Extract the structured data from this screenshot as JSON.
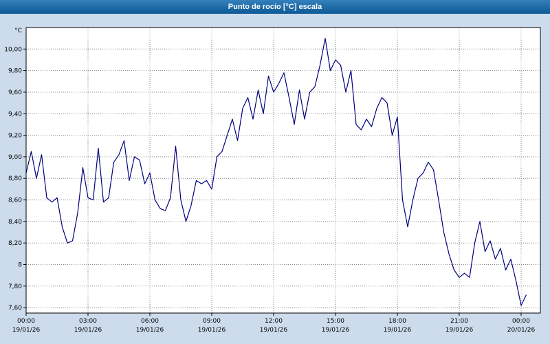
{
  "title": "Punto de rocío [°C] escala",
  "colors": {
    "window_bg": "#ccdcec",
    "titlebar_top": "#3380bb",
    "titlebar_bottom": "#0d5996",
    "title_text": "#ffffff",
    "plot_bg": "#ffffff",
    "grid": "#8a8a8a",
    "axis_text": "#000000",
    "frame": "#000000",
    "line": "#000080"
  },
  "chart_data": {
    "type": "line",
    "title": "Punto de rocío [°C] escala",
    "ylabel": "°C",
    "xlabel": "",
    "ylim": [
      7.55,
      10.2
    ],
    "grid": true,
    "legend_position": "none",
    "y_ticks": [
      {
        "value": 10.0,
        "label": "10,00"
      },
      {
        "value": 9.8,
        "label": "9,80"
      },
      {
        "value": 9.6,
        "label": "9,60"
      },
      {
        "value": 9.4,
        "label": "9,40"
      },
      {
        "value": 9.2,
        "label": "9,20"
      },
      {
        "value": 9.0,
        "label": "9,00"
      },
      {
        "value": 8.8,
        "label": "8,80"
      },
      {
        "value": 8.6,
        "label": "8,60"
      },
      {
        "value": 8.4,
        "label": "8,40"
      },
      {
        "value": 8.2,
        "label": "8,20"
      },
      {
        "value": 8.0,
        "label": "8"
      },
      {
        "value": 7.8,
        "label": "7,80"
      },
      {
        "value": 7.6,
        "label": "7,60"
      }
    ],
    "x_ticks": [
      {
        "hour": 0,
        "time": "00:00",
        "date": "19/01/26"
      },
      {
        "hour": 3,
        "time": "03:00",
        "date": "19/01/26"
      },
      {
        "hour": 6,
        "time": "06:00",
        "date": "19/01/26"
      },
      {
        "hour": 9,
        "time": "09:00",
        "date": "19/01/26"
      },
      {
        "hour": 12,
        "time": "12:00",
        "date": "19/01/26"
      },
      {
        "hour": 15,
        "time": "15:00",
        "date": "19/01/26"
      },
      {
        "hour": 18,
        "time": "18:00",
        "date": "19/01/26"
      },
      {
        "hour": 21,
        "time": "21:00",
        "date": "19/01/26"
      },
      {
        "hour": 24,
        "time": "00:00",
        "date": "20/01/26"
      }
    ],
    "series": [
      {
        "name": "Punto de rocío",
        "color": "#000080",
        "start_hour": 0,
        "interval_minutes": 15,
        "values": [
          8.85,
          9.05,
          8.8,
          9.02,
          8.62,
          8.58,
          8.62,
          8.35,
          8.2,
          8.22,
          8.48,
          8.9,
          8.62,
          8.6,
          9.08,
          8.58,
          8.62,
          8.95,
          9.02,
          9.15,
          8.78,
          9.0,
          8.97,
          8.75,
          8.85,
          8.6,
          8.52,
          8.5,
          8.62,
          9.1,
          8.6,
          8.4,
          8.55,
          8.78,
          8.75,
          8.78,
          8.7,
          9.0,
          9.05,
          9.2,
          9.35,
          9.15,
          9.45,
          9.55,
          9.35,
          9.62,
          9.4,
          9.75,
          9.6,
          9.68,
          9.78,
          9.55,
          9.3,
          9.62,
          9.35,
          9.6,
          9.65,
          9.85,
          10.1,
          9.8,
          9.9,
          9.85,
          9.6,
          9.8,
          9.3,
          9.25,
          9.35,
          9.28,
          9.45,
          9.55,
          9.5,
          9.2,
          9.37,
          8.6,
          8.35,
          8.6,
          8.8,
          8.85,
          8.95,
          8.88,
          8.6,
          8.3,
          8.1,
          7.95,
          7.88,
          7.92,
          7.88,
          8.2,
          8.4,
          8.12,
          8.22,
          8.05,
          8.15,
          7.95,
          8.05,
          7.85,
          7.62,
          7.72
        ]
      }
    ]
  }
}
